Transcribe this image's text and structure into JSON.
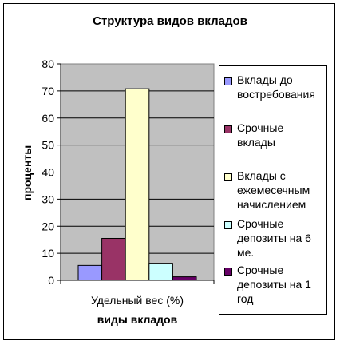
{
  "chart_data": {
    "type": "bar",
    "title": "Структура видов вкладов",
    "xlabel": "виды вкладов",
    "ylabel": "проценты",
    "categories": [
      "Удельный вес (%)"
    ],
    "ylim": [
      0,
      80
    ],
    "yticks": [
      "0",
      "10",
      "20",
      "30",
      "40",
      "50",
      "60",
      "70",
      "80"
    ],
    "plot_background": "#c0c0c0",
    "grid": true,
    "legend_position": "right",
    "series": [
      {
        "name": "Вклады до востребования",
        "values": [
          5.5
        ],
        "color": "#9999ff"
      },
      {
        "name": "Срочные вклады",
        "values": [
          15.5
        ],
        "color": "#993366"
      },
      {
        "name": "Вклады с ежемесечным начислением",
        "values": [
          70.8
        ],
        "color": "#ffffcc"
      },
      {
        "name": "Срочные депозиты на 6 ме.",
        "values": [
          6.3
        ],
        "color": "#ccffff"
      },
      {
        "name": "Срочные депозиты на 1 год",
        "values": [
          1.3
        ],
        "color": "#660066"
      }
    ]
  }
}
